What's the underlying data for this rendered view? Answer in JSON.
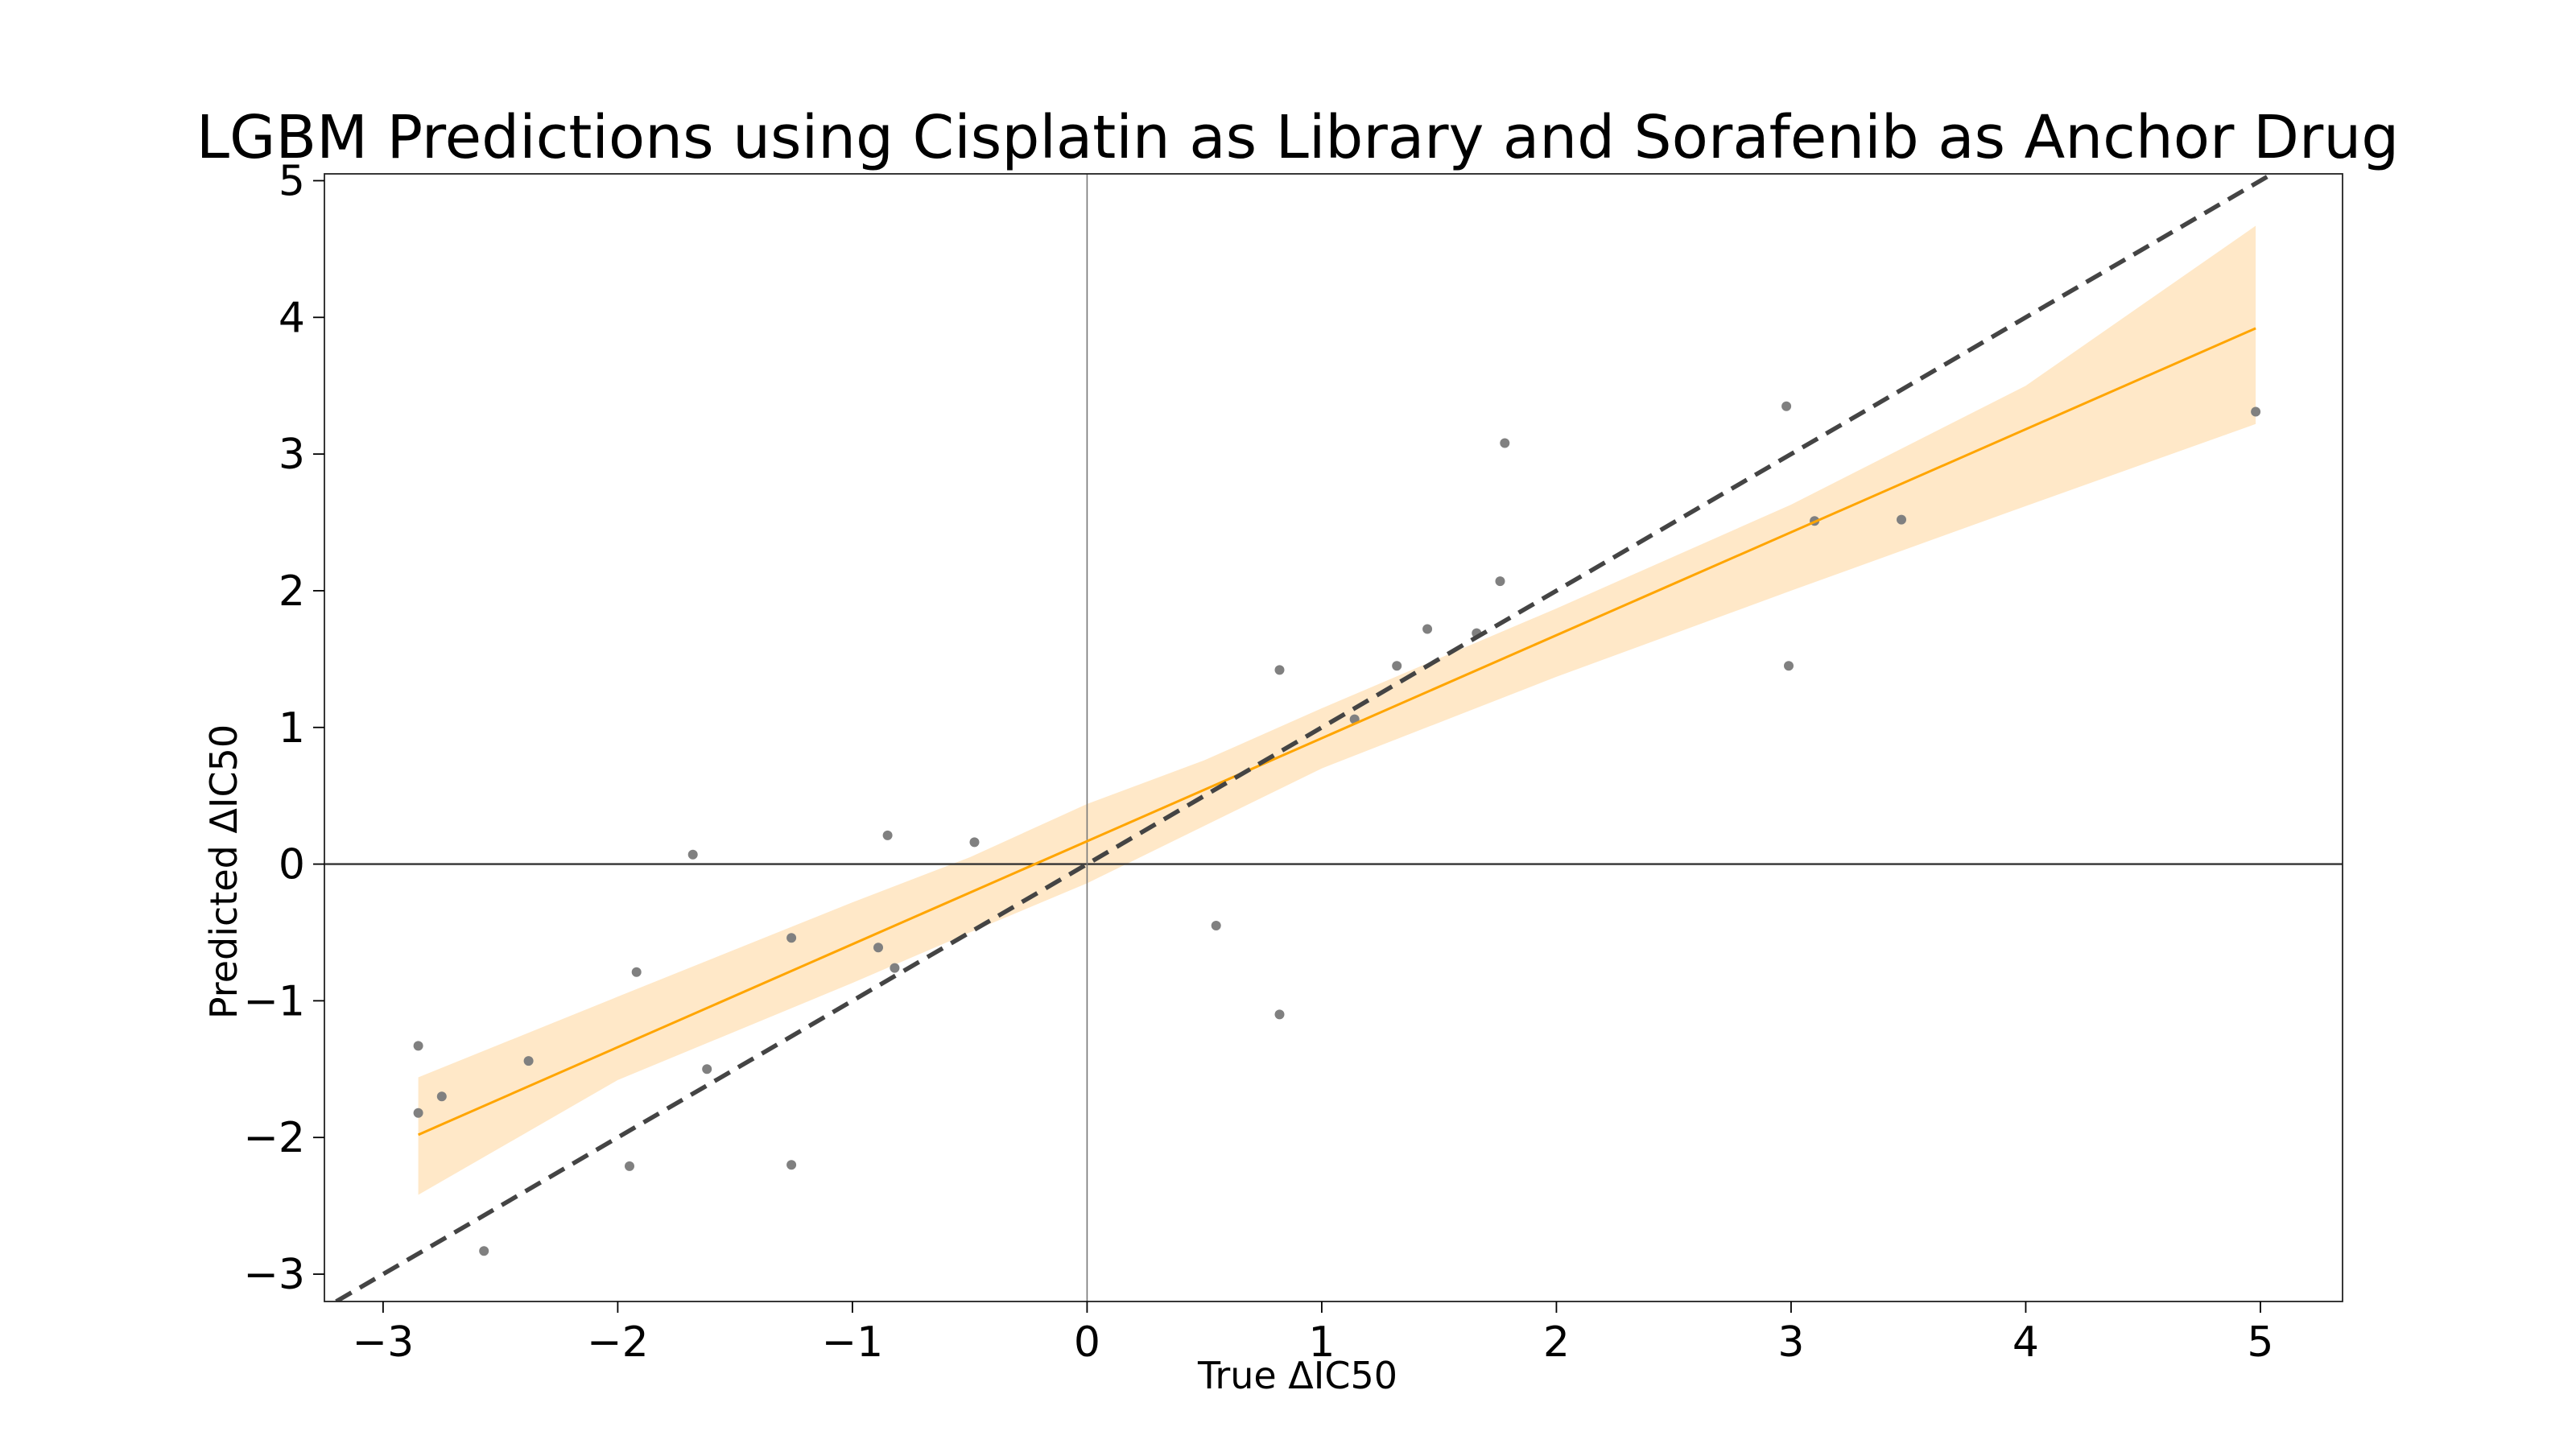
{
  "chart_data": {
    "type": "scatter",
    "title": "LGBM Predictions using Cisplatin as Library and Sorafenib as Anchor Drug",
    "xlabel": "True ΔIC50",
    "ylabel": "Predicted ΔIC50",
    "xlim": [
      -3.25,
      5.35
    ],
    "ylim": [
      -3.2,
      5.05
    ],
    "xticks": [
      -3,
      -2,
      -1,
      0,
      1,
      2,
      3,
      4,
      5
    ],
    "yticks": [
      -3,
      -2,
      -1,
      0,
      1,
      2,
      3,
      4,
      5
    ],
    "xtick_labels": [
      "−3",
      "−2",
      "−1",
      "0",
      "1",
      "2",
      "3",
      "4",
      "5"
    ],
    "ytick_labels": [
      "−3",
      "−2",
      "−1",
      "0",
      "1",
      "2",
      "3",
      "4",
      "5"
    ],
    "grid": false,
    "reference_lines": {
      "horizontal_zero": true,
      "vertical_zero": true,
      "identity_dashed": true
    },
    "colors": {
      "points": "#808080",
      "fit_line": "#ffa500",
      "confidence_band": "#ffe8c8",
      "identity_line": "#444444",
      "zero_lines": "#333333"
    },
    "series": [
      {
        "type": "points",
        "x": [
          -2.85,
          -2.85,
          -2.75,
          -2.57,
          -2.38,
          -1.95,
          -1.92,
          -1.68,
          -1.62,
          -1.26,
          -1.26,
          -0.89,
          -0.85,
          -0.82,
          -0.48,
          0.55,
          0.82,
          0.82,
          1.14,
          1.32,
          1.45,
          1.66,
          1.76,
          1.78,
          2.98,
          2.99,
          3.1,
          3.47,
          4.98
        ],
        "y": [
          -1.33,
          -1.82,
          -1.7,
          -2.83,
          -1.44,
          -2.21,
          -0.79,
          0.07,
          -1.5,
          -0.54,
          -2.2,
          -0.61,
          0.21,
          -0.76,
          0.16,
          -0.45,
          1.42,
          -1.1,
          1.06,
          1.45,
          1.72,
          1.69,
          2.07,
          3.08,
          3.35,
          1.45,
          2.51,
          2.52,
          3.31
        ]
      },
      {
        "type": "fit_line",
        "x": [
          -2.85,
          4.98
        ],
        "y": [
          -1.98,
          3.92
        ]
      },
      {
        "type": "confidence_band",
        "x": [
          -2.85,
          -2.0,
          -1.0,
          -0.5,
          0.0,
          0.5,
          1.0,
          2.0,
          3.0,
          4.0,
          4.98
        ],
        "lower": [
          -2.42,
          -1.58,
          -0.87,
          -0.5,
          -0.14,
          0.28,
          0.7,
          1.37,
          2.0,
          2.62,
          3.22
        ],
        "upper": [
          -1.56,
          -0.97,
          -0.28,
          0.05,
          0.44,
          0.76,
          1.14,
          1.87,
          2.63,
          3.5,
          4.67
        ]
      }
    ]
  }
}
